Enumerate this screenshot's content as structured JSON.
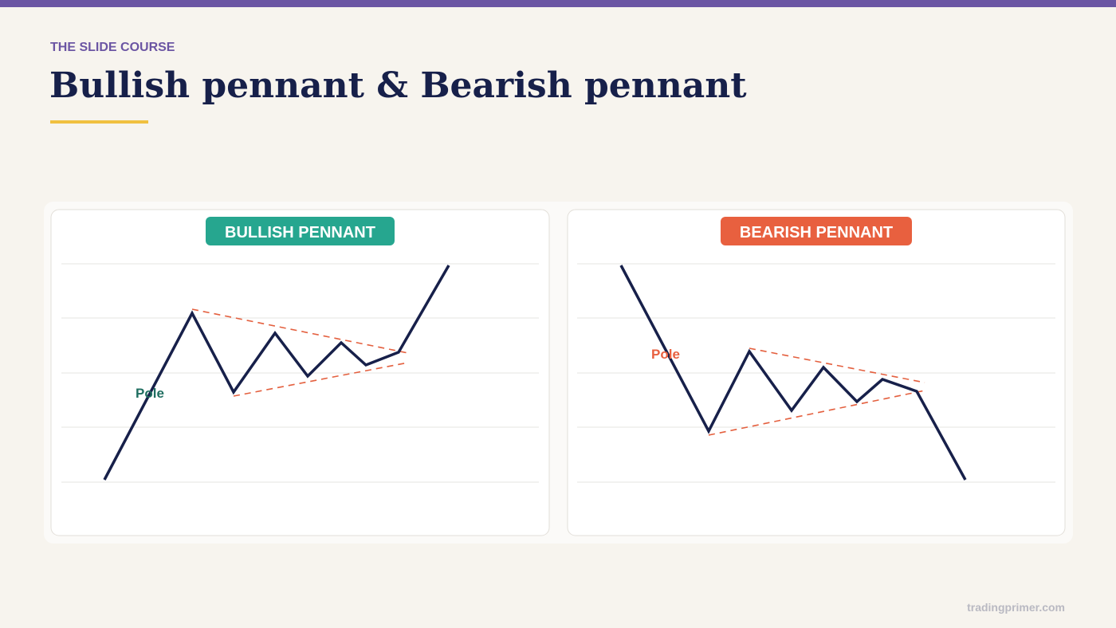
{
  "header": {
    "kicker": "THE SLIDE COURSE",
    "title": "Bullish pennant & Bearish pennant"
  },
  "panels": [
    {
      "badge": "BULLISH PENNANT",
      "pole_label": "Pole"
    },
    {
      "badge": "BEARISH PENNANT",
      "pole_label": "Pole"
    }
  ],
  "footer": "tradingprimer.com"
}
